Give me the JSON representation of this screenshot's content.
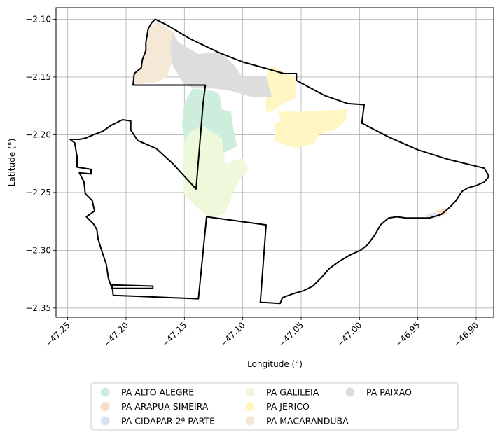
{
  "chart_data": {
    "type": "map",
    "xlabel": "Longitude (°)",
    "ylabel": "Latitude (°)",
    "xlim": [
      -47.26,
      -46.885
    ],
    "ylim": [
      -2.358,
      -2.09
    ],
    "x_ticks": [
      {
        "value": -47.25,
        "label": "−47.25"
      },
      {
        "value": -47.2,
        "label": "−47.20"
      },
      {
        "value": -47.15,
        "label": "−47.15"
      },
      {
        "value": -47.1,
        "label": "−47.10"
      },
      {
        "value": -47.05,
        "label": "−47.05"
      },
      {
        "value": -47.0,
        "label": "−47.00"
      },
      {
        "value": -46.95,
        "label": "−46.95"
      },
      {
        "value": -46.9,
        "label": "−46.90"
      }
    ],
    "y_ticks": [
      {
        "value": -2.1,
        "label": "−2.10"
      },
      {
        "value": -2.15,
        "label": "−2.15"
      },
      {
        "value": -2.2,
        "label": "−2.20"
      },
      {
        "value": -2.25,
        "label": "−2.25"
      },
      {
        "value": -2.3,
        "label": "−2.30"
      },
      {
        "value": -2.35,
        "label": "−2.35"
      }
    ],
    "grid": true,
    "legend_placement": "bottom-center",
    "boundary": [
      [
        -47.175,
        -2.1
      ],
      [
        -47.165,
        -2.105
      ],
      [
        -47.145,
        -2.117
      ],
      [
        -47.12,
        -2.129
      ],
      [
        -47.1,
        -2.137
      ],
      [
        -47.075,
        -2.144
      ],
      [
        -47.065,
        -2.147
      ],
      [
        -47.054,
        -2.147
      ],
      [
        -47.054,
        -2.153
      ],
      [
        -47.03,
        -2.166
      ],
      [
        -47.01,
        -2.173
      ],
      [
        -46.996,
        -2.174
      ],
      [
        -46.998,
        -2.19
      ],
      [
        -46.975,
        -2.202
      ],
      [
        -46.95,
        -2.213
      ],
      [
        -46.925,
        -2.221
      ],
      [
        -46.905,
        -2.226
      ],
      [
        -46.893,
        -2.229
      ],
      [
        -46.889,
        -2.236
      ],
      [
        -46.893,
        -2.241
      ],
      [
        -46.9,
        -2.244
      ],
      [
        -46.907,
        -2.246
      ],
      [
        -46.912,
        -2.249
      ],
      [
        -46.918,
        -2.258
      ],
      [
        -46.924,
        -2.264
      ],
      [
        -46.93,
        -2.269
      ],
      [
        -46.94,
        -2.272
      ],
      [
        -46.95,
        -2.272
      ],
      [
        -46.96,
        -2.272
      ],
      [
        -46.968,
        -2.271
      ],
      [
        -46.975,
        -2.272
      ],
      [
        -46.982,
        -2.278
      ],
      [
        -46.987,
        -2.287
      ],
      [
        -46.993,
        -2.295
      ],
      [
        -46.999,
        -2.3
      ],
      [
        -47.008,
        -2.304
      ],
      [
        -47.018,
        -2.31
      ],
      [
        -47.026,
        -2.316
      ],
      [
        -47.033,
        -2.324
      ],
      [
        -47.04,
        -2.331
      ],
      [
        -47.048,
        -2.335
      ],
      [
        -47.058,
        -2.338
      ],
      [
        -47.066,
        -2.341
      ],
      [
        -47.068,
        -2.346
      ],
      [
        -47.085,
        -2.345
      ],
      [
        -47.08,
        -2.278
      ],
      [
        -47.131,
        -2.271
      ],
      [
        -47.138,
        -2.342
      ],
      [
        -47.187,
        -2.34
      ],
      [
        -47.211,
        -2.339
      ],
      [
        -47.212,
        -2.33
      ],
      [
        -47.177,
        -2.331
      ],
      [
        -47.177,
        -2.333
      ],
      [
        -47.212,
        -2.333
      ],
      [
        -47.215,
        -2.325
      ],
      [
        -47.217,
        -2.312
      ],
      [
        -47.221,
        -2.3
      ],
      [
        -47.224,
        -2.29
      ],
      [
        -47.225,
        -2.282
      ],
      [
        -47.228,
        -2.277
      ],
      [
        -47.234,
        -2.271
      ],
      [
        -47.227,
        -2.266
      ],
      [
        -47.229,
        -2.257
      ],
      [
        -47.235,
        -2.251
      ],
      [
        -47.236,
        -2.241
      ],
      [
        -47.24,
        -2.233
      ],
      [
        -47.23,
        -2.234
      ],
      [
        -47.23,
        -2.23
      ],
      [
        -47.242,
        -2.228
      ],
      [
        -47.242,
        -2.219
      ],
      [
        -47.244,
        -2.207
      ],
      [
        -47.248,
        -2.204
      ],
      [
        -47.24,
        -2.204
      ],
      [
        -47.235,
        -2.203
      ],
      [
        -47.228,
        -2.2
      ],
      [
        -47.22,
        -2.197
      ],
      [
        -47.213,
        -2.192
      ],
      [
        -47.203,
        -2.187
      ],
      [
        -47.196,
        -2.188
      ],
      [
        -47.196,
        -2.196
      ],
      [
        -47.19,
        -2.205
      ],
      [
        -47.174,
        -2.212
      ],
      [
        -47.16,
        -2.225
      ],
      [
        -47.14,
        -2.247
      ],
      [
        -47.134,
        -2.173
      ],
      [
        -47.132,
        -2.157
      ],
      [
        -47.194,
        -2.157
      ],
      [
        -47.193,
        -2.147
      ],
      [
        -47.187,
        -2.142
      ],
      [
        -47.186,
        -2.135
      ],
      [
        -47.183,
        -2.127
      ],
      [
        -47.183,
        -2.12
      ],
      [
        -47.181,
        -2.108
      ],
      [
        -47.178,
        -2.103
      ],
      [
        -47.175,
        -2.1
      ]
    ],
    "series": [
      {
        "name": "PA ALTO ALEGRE",
        "color": "#cdeedd",
        "polygon": [
          [
            -47.143,
            -2.16
          ],
          [
            -47.125,
            -2.162
          ],
          [
            -47.12,
            -2.165
          ],
          [
            -47.118,
            -2.178
          ],
          [
            -47.11,
            -2.18
          ],
          [
            -47.108,
            -2.195
          ],
          [
            -47.105,
            -2.21
          ],
          [
            -47.115,
            -2.215
          ],
          [
            -47.128,
            -2.216
          ],
          [
            -47.14,
            -2.212
          ],
          [
            -47.15,
            -2.205
          ],
          [
            -47.152,
            -2.19
          ],
          [
            -47.15,
            -2.172
          ]
        ]
      },
      {
        "name": "PA ARAPUA SIMEIRA",
        "color": "#fbdcc6",
        "polygon": [
          [
            -46.935,
            -2.266
          ],
          [
            -46.928,
            -2.264
          ],
          [
            -46.924,
            -2.268
          ],
          [
            -46.929,
            -2.27
          ]
        ]
      },
      {
        "name": "PA CIDAPAR 2ª PARTE",
        "color": "#d9e2f0",
        "polygon": [
          [
            -46.944,
            -2.27
          ],
          [
            -46.935,
            -2.267
          ],
          [
            -46.93,
            -2.271
          ],
          [
            -46.94,
            -2.273
          ]
        ]
      },
      {
        "name": "PA GALILEIA",
        "color": "#eef8da",
        "polygon": [
          [
            -47.145,
            -2.198
          ],
          [
            -47.135,
            -2.192
          ],
          [
            -47.125,
            -2.198
          ],
          [
            -47.118,
            -2.203
          ],
          [
            -47.115,
            -2.225
          ],
          [
            -47.1,
            -2.22
          ],
          [
            -47.095,
            -2.23
          ],
          [
            -47.105,
            -2.242
          ],
          [
            -47.11,
            -2.255
          ],
          [
            -47.115,
            -2.268
          ],
          [
            -47.128,
            -2.272
          ],
          [
            -47.14,
            -2.262
          ],
          [
            -47.15,
            -2.252
          ],
          [
            -47.152,
            -2.23
          ],
          [
            -47.15,
            -2.205
          ]
        ]
      },
      {
        "name": "PA JERICO",
        "color": "#fff6c4",
        "polygon": [
          [
            -47.077,
            -2.14
          ],
          [
            -47.055,
            -2.15
          ],
          [
            -47.055,
            -2.168
          ],
          [
            -47.065,
            -2.173
          ],
          [
            -47.075,
            -2.18
          ],
          [
            -47.08,
            -2.18
          ],
          [
            -47.08,
            -2.15
          ]
        ]
      },
      {
        "name": "PA JERICO",
        "color": "#fff6c4",
        "polygon": [
          [
            -47.07,
            -2.18
          ],
          [
            -47.067,
            -2.188
          ],
          [
            -47.072,
            -2.19
          ],
          [
            -47.073,
            -2.205
          ],
          [
            -47.055,
            -2.212
          ],
          [
            -47.04,
            -2.208
          ],
          [
            -47.035,
            -2.2
          ],
          [
            -47.02,
            -2.195
          ],
          [
            -47.012,
            -2.188
          ],
          [
            -47.01,
            -2.178
          ],
          [
            -47.05,
            -2.18
          ]
        ]
      },
      {
        "name": "PA MACARANDUBA",
        "color": "#f5e8d6",
        "polygon": [
          [
            -47.173,
            -2.102
          ],
          [
            -47.158,
            -2.112
          ],
          [
            -47.16,
            -2.135
          ],
          [
            -47.165,
            -2.15
          ],
          [
            -47.175,
            -2.155
          ],
          [
            -47.193,
            -2.156
          ],
          [
            -47.193,
            -2.147
          ],
          [
            -47.187,
            -2.142
          ],
          [
            -47.183,
            -2.127
          ],
          [
            -47.181,
            -2.108
          ]
        ]
      },
      {
        "name": "PA PAIXAO",
        "color": "#dddddd",
        "polygon": [
          [
            -47.16,
            -2.112
          ],
          [
            -47.155,
            -2.12
          ],
          [
            -47.138,
            -2.13
          ],
          [
            -47.12,
            -2.128
          ],
          [
            -47.108,
            -2.139
          ],
          [
            -47.1,
            -2.15
          ],
          [
            -47.08,
            -2.15
          ],
          [
            -47.075,
            -2.167
          ],
          [
            -47.09,
            -2.168
          ],
          [
            -47.11,
            -2.162
          ],
          [
            -47.125,
            -2.16
          ],
          [
            -47.14,
            -2.16
          ],
          [
            -47.15,
            -2.157
          ],
          [
            -47.16,
            -2.14
          ],
          [
            -47.162,
            -2.125
          ]
        ]
      }
    ],
    "legend": [
      {
        "label": "PA ALTO ALEGRE",
        "color": "#cdeedd"
      },
      {
        "label": "PA ARAPUA SIMEIRA",
        "color": "#fbdcc6"
      },
      {
        "label": "PA CIDAPAR 2ª PARTE",
        "color": "#d9e2f0"
      },
      {
        "label": "PA GALILEIA",
        "color": "#eef8da"
      },
      {
        "label": "PA JERICO",
        "color": "#fff6c4"
      },
      {
        "label": "PA MACARANDUBA",
        "color": "#f5e8d6"
      },
      {
        "label": "PA PAIXAO",
        "color": "#dddddd"
      }
    ]
  }
}
